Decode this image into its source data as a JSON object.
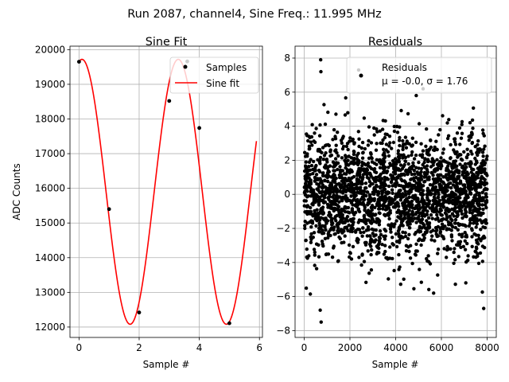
{
  "suptitle": "Run 2087, channel4, Sine Freq.: 11.995 MHz",
  "chart_data": [
    {
      "type": "scatter+line",
      "title": "Sine Fit",
      "xlabel": "Sample #",
      "ylabel": "ADC Counts",
      "xlim": [
        -0.3,
        6.1
      ],
      "ylim": [
        11700,
        20100
      ],
      "xticks": [
        0,
        2,
        4,
        6
      ],
      "yticks": [
        12000,
        13000,
        14000,
        15000,
        16000,
        17000,
        18000,
        19000,
        20000
      ],
      "grid": true,
      "legend_position": "top-right",
      "series": [
        {
          "name": "Samples",
          "kind": "scatter",
          "color": "#000000",
          "x": [
            0,
            1,
            2,
            3,
            3.6,
            4,
            5
          ],
          "y": [
            19650,
            15400,
            12420,
            18520,
            19660,
            17740,
            12110
          ]
        },
        {
          "name": "Sine fit",
          "kind": "line",
          "color": "#ff0000",
          "model": {
            "offset": 15900,
            "amplitude": 3820,
            "period": 3.2,
            "peak_x": 0.1
          },
          "x_range": [
            0,
            5.9
          ]
        }
      ]
    },
    {
      "type": "scatter",
      "title": "Residuals",
      "xlabel": "Sample #",
      "ylabel": "",
      "xlim": [
        -400,
        8400
      ],
      "ylim": [
        -8.4,
        8.7
      ],
      "xticks": [
        0,
        2000,
        4000,
        6000,
        8000
      ],
      "yticks": [
        -8,
        -6,
        -4,
        -2,
        0,
        2,
        4,
        6,
        8
      ],
      "grid": true,
      "legend_position": "top-right",
      "series": [
        {
          "name": "Residuals",
          "stats_label": "μ = -0.0, σ = 1.76",
          "color": "#000000",
          "x_range": [
            0,
            7999
          ],
          "mean": 0.0,
          "std": 1.76,
          "count": 2400,
          "outliers": [
            {
              "x": 720,
              "y": 7.9
            },
            {
              "x": 730,
              "y": 7.2
            },
            {
              "x": 740,
              "y": -7.5
            },
            {
              "x": 700,
              "y": -6.8
            },
            {
              "x": 2380,
              "y": 7.3
            },
            {
              "x": 7850,
              "y": -6.7
            },
            {
              "x": 5200,
              "y": 6.2
            },
            {
              "x": 4900,
              "y": 5.8
            },
            {
              "x": 5660,
              "y": -5.8
            }
          ]
        }
      ]
    }
  ]
}
